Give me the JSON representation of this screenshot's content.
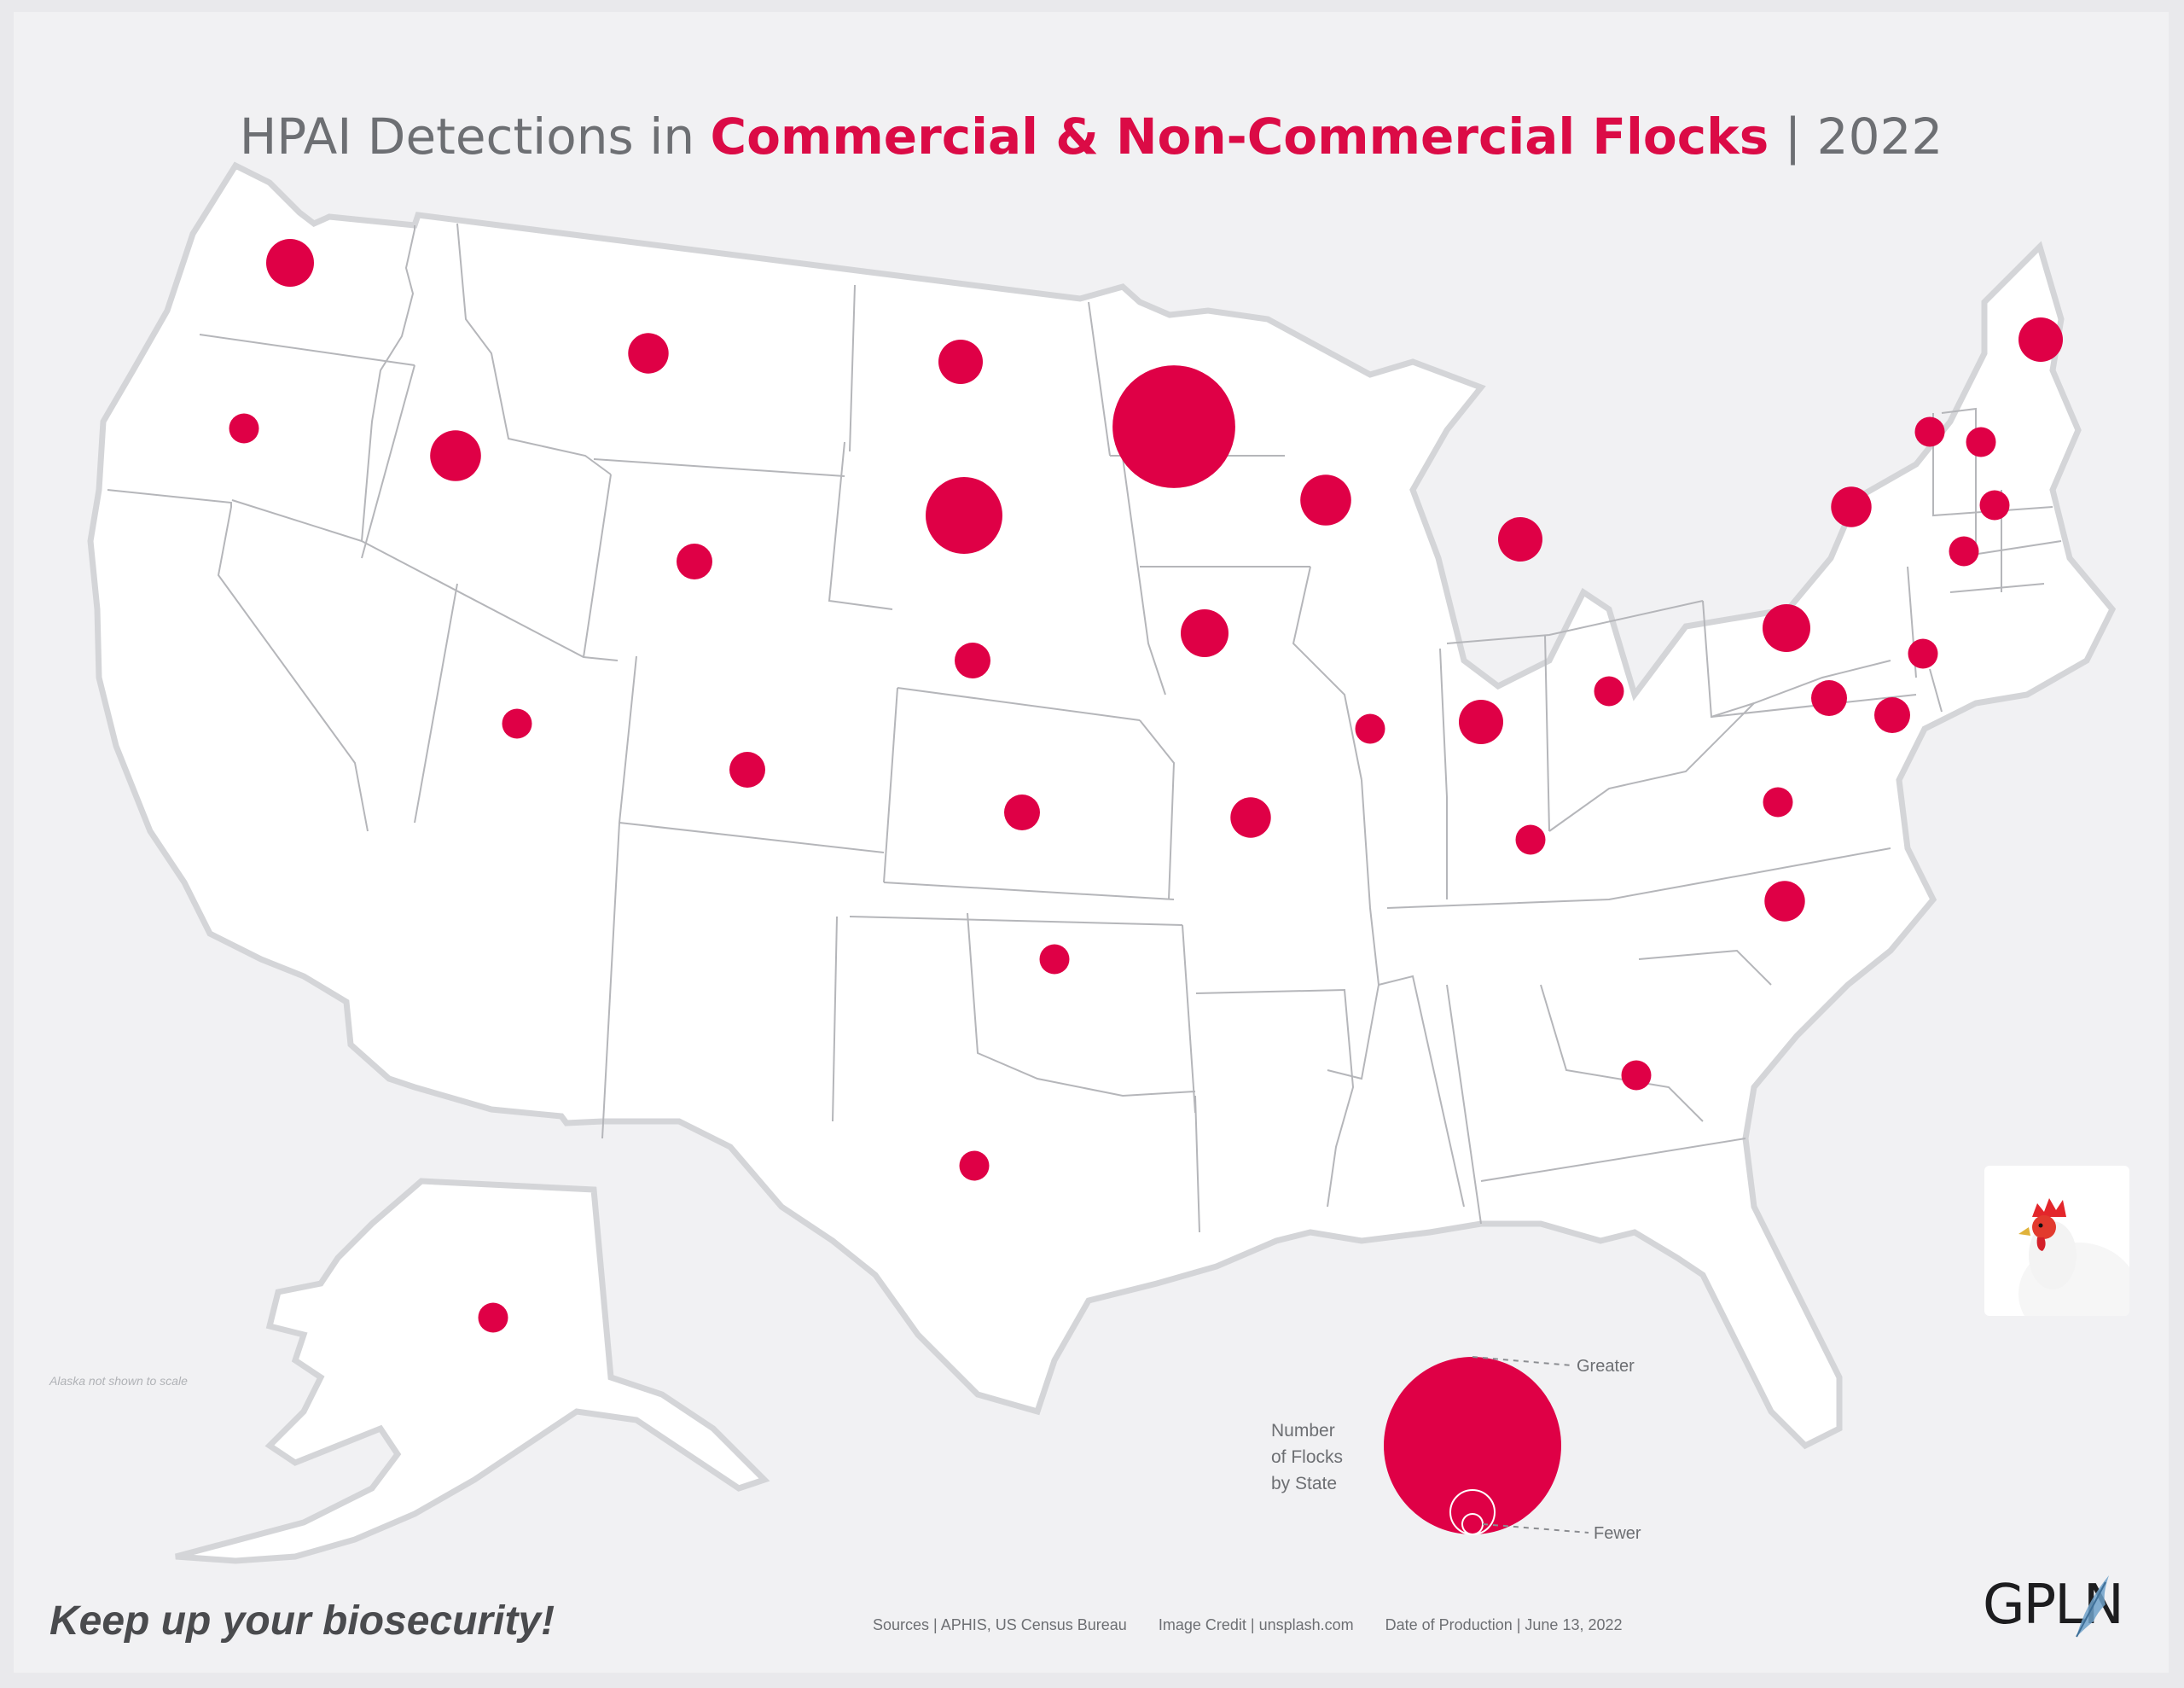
{
  "title": {
    "prefix": "HPAI Detections in ",
    "highlight": "Commercial & Non-Commercial Flocks",
    "suffix": " | 2022"
  },
  "colors": {
    "accent": "#df0046",
    "land": "#ffffff",
    "background": "#f1f1f3",
    "borders": "#b5b6ba"
  },
  "map_note": "Alaska not shown to scale",
  "legend": {
    "title_lines": [
      "Number",
      "of Flocks",
      "by State"
    ],
    "greater_label": "Greater",
    "fewer_label": "Fewer"
  },
  "states": [
    {
      "name": "Washington",
      "level": 5
    },
    {
      "name": "Oregon",
      "level": 1
    },
    {
      "name": "Idaho",
      "level": 6
    },
    {
      "name": "Montana",
      "level": 3
    },
    {
      "name": "Wyoming",
      "level": 2
    },
    {
      "name": "Utah",
      "level": 1
    },
    {
      "name": "Colorado",
      "level": 2
    },
    {
      "name": "North Dakota",
      "level": 4
    },
    {
      "name": "South Dakota",
      "level": 8
    },
    {
      "name": "Nebraska",
      "level": 2
    },
    {
      "name": "Kansas",
      "level": 2
    },
    {
      "name": "Oklahoma",
      "level": 1
    },
    {
      "name": "Texas",
      "level": 1
    },
    {
      "name": "Minnesota",
      "level": 10
    },
    {
      "name": "Iowa",
      "level": 5
    },
    {
      "name": "Missouri",
      "level": 3
    },
    {
      "name": "Wisconsin",
      "level": 6
    },
    {
      "name": "Illinois",
      "level": 1
    },
    {
      "name": "Michigan",
      "level": 4
    },
    {
      "name": "Indiana",
      "level": 4
    },
    {
      "name": "Ohio",
      "level": 1
    },
    {
      "name": "Kentucky",
      "level": 1
    },
    {
      "name": "Pennsylvania",
      "level": 5
    },
    {
      "name": "New York",
      "level": 3
    },
    {
      "name": "Maine",
      "level": 4
    },
    {
      "name": "Vermont",
      "level": 1
    },
    {
      "name": "New Hampshire",
      "level": 1
    },
    {
      "name": "Massachusetts",
      "level": 1
    },
    {
      "name": "Connecticut",
      "level": 1
    },
    {
      "name": "New Jersey",
      "level": 1
    },
    {
      "name": "Maryland",
      "level": 2
    },
    {
      "name": "Delaware",
      "level": 2
    },
    {
      "name": "Virginia",
      "level": 1
    },
    {
      "name": "North Carolina",
      "level": 3
    },
    {
      "name": "Georgia",
      "level": 1
    },
    {
      "name": "Alaska",
      "level": 1
    }
  ],
  "tagline": "Keep up your biosecurity!",
  "footer": {
    "sources": "Sources | APHIS, US Census Bureau",
    "image_credit": "Image Credit | unsplash.com",
    "date": "Date of Production | June 13, 2022"
  },
  "logo": {
    "text": "GPLN"
  },
  "icons": {
    "photo": "rooster-photo",
    "logo_mark": "feather-icon"
  }
}
